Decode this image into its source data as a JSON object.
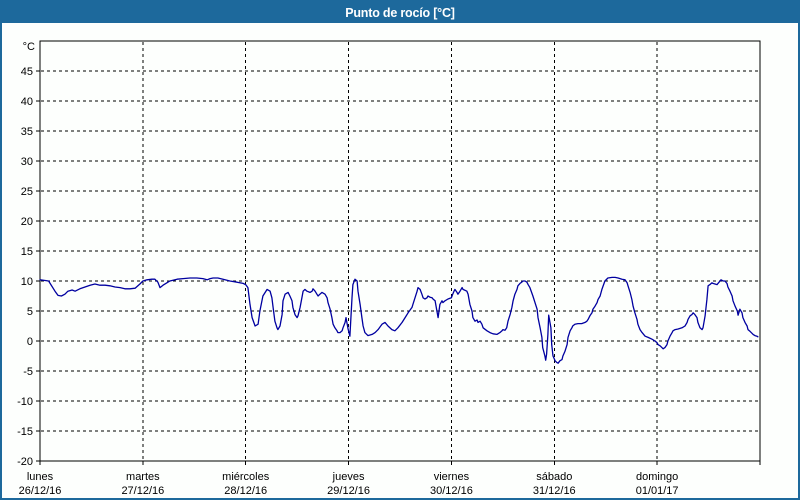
{
  "window": {
    "title": "Punto de rocío [°C]"
  },
  "colors": {
    "titlebar_bg": "#1d699c",
    "window_border": "#1d699c",
    "plot_background": "#fdfffd",
    "frame": "#000000",
    "grid": "#000000",
    "text": "#000000",
    "line": "#0000a0"
  },
  "chart_data": {
    "type": "line",
    "title": "Punto de rocío [°C]",
    "y_unit_label": "°C",
    "ylim": [
      -20,
      50
    ],
    "y_tick_step": 5,
    "y_ticks": [
      45,
      40,
      35,
      30,
      25,
      20,
      15,
      10,
      5,
      0,
      -5,
      -10,
      -15,
      -20
    ],
    "grid": "dashed",
    "legend_position": "none",
    "x_hours_total": 168,
    "x_days": [
      {
        "name": "lunes",
        "date": "26/12/16"
      },
      {
        "name": "martes",
        "date": "27/12/16"
      },
      {
        "name": "miércoles",
        "date": "28/12/16"
      },
      {
        "name": "jueves",
        "date": "29/12/16"
      },
      {
        "name": "viernes",
        "date": "30/12/16"
      },
      {
        "name": "sábado",
        "date": "31/12/16"
      },
      {
        "name": "domingo",
        "date": "01/01/17"
      }
    ],
    "series": [
      {
        "name": "Punto de rocío",
        "color": "#0000a0",
        "points": [
          [
            0,
            10.2
          ],
          [
            1,
            10.1
          ],
          [
            2,
            10.0
          ],
          [
            3.5,
            8.3
          ],
          [
            4.2,
            7.6
          ],
          [
            5,
            7.5
          ],
          [
            5.8,
            7.8
          ],
          [
            6.5,
            8.3
          ],
          [
            7.5,
            8.5
          ],
          [
            8.2,
            8.3
          ],
          [
            9.3,
            8.7
          ],
          [
            10.5,
            9.0
          ],
          [
            11.7,
            9.3
          ],
          [
            12.8,
            9.5
          ],
          [
            14,
            9.3
          ],
          [
            15.2,
            9.3
          ],
          [
            16.3,
            9.2
          ],
          [
            17.5,
            9.0
          ],
          [
            18.7,
            8.9
          ],
          [
            19.8,
            8.7
          ],
          [
            21,
            8.7
          ],
          [
            22.2,
            8.8
          ],
          [
            23.3,
            9.5
          ],
          [
            24,
            10.0
          ],
          [
            25,
            10.2
          ],
          [
            26.1,
            10.3
          ],
          [
            26.8,
            10.3
          ],
          [
            27.5,
            9.8
          ],
          [
            28,
            8.9
          ],
          [
            28.7,
            9.3
          ],
          [
            29.6,
            9.7
          ],
          [
            30.3,
            10.0
          ],
          [
            32,
            10.3
          ],
          [
            33.4,
            10.4
          ],
          [
            35,
            10.5
          ],
          [
            36.6,
            10.5
          ],
          [
            38,
            10.4
          ],
          [
            39,
            10.2
          ],
          [
            39.7,
            10.4
          ],
          [
            40.4,
            10.5
          ],
          [
            41.5,
            10.5
          ],
          [
            42.7,
            10.3
          ],
          [
            44.3,
            10.0
          ],
          [
            46,
            9.8
          ],
          [
            47.4,
            9.6
          ],
          [
            48,
            9.4
          ],
          [
            48.5,
            8.9
          ],
          [
            49,
            6.1
          ],
          [
            49.5,
            3.9
          ],
          [
            50.2,
            2.5
          ],
          [
            50.9,
            2.8
          ],
          [
            51.3,
            5.0
          ],
          [
            52,
            7.5
          ],
          [
            53,
            8.6
          ],
          [
            53.7,
            8.3
          ],
          [
            54.1,
            7.2
          ],
          [
            54.4,
            5.6
          ],
          [
            54.8,
            3.3
          ],
          [
            55.3,
            2.2
          ],
          [
            55.5,
            1.9
          ],
          [
            56,
            2.5
          ],
          [
            56.5,
            4.4
          ],
          [
            56.7,
            6.7
          ],
          [
            57.2,
            7.8
          ],
          [
            57.9,
            8.1
          ],
          [
            58.3,
            7.5
          ],
          [
            58.8,
            6.7
          ],
          [
            59,
            5.6
          ],
          [
            59.5,
            4.4
          ],
          [
            60,
            3.9
          ],
          [
            60.2,
            4.2
          ],
          [
            60.7,
            5.6
          ],
          [
            61.1,
            7.2
          ],
          [
            61.4,
            8.3
          ],
          [
            61.8,
            8.6
          ],
          [
            62.3,
            8.3
          ],
          [
            63,
            8.1
          ],
          [
            63.5,
            8.3
          ],
          [
            63.7,
            8.7
          ],
          [
            64.2,
            8.3
          ],
          [
            64.6,
            7.8
          ],
          [
            64.9,
            7.5
          ],
          [
            65.3,
            7.8
          ],
          [
            65.8,
            8.1
          ],
          [
            66.5,
            7.8
          ],
          [
            67,
            7.2
          ],
          [
            67.2,
            6.4
          ],
          [
            67.7,
            5.3
          ],
          [
            68.1,
            3.9
          ],
          [
            68.4,
            2.8
          ],
          [
            68.8,
            2.2
          ],
          [
            69.3,
            1.7
          ],
          [
            69.5,
            1.4
          ],
          [
            70,
            1.4
          ],
          [
            70.5,
            1.7
          ],
          [
            70.7,
            2.2
          ],
          [
            71.2,
            3.1
          ],
          [
            71.4,
            3.9
          ],
          [
            71.9,
            2.0
          ],
          [
            72.3,
            0.8
          ],
          [
            72.8,
            7.2
          ],
          [
            73,
            9.4
          ],
          [
            73.5,
            10.3
          ],
          [
            74,
            10.0
          ],
          [
            74.2,
            8.3
          ],
          [
            74.7,
            6.1
          ],
          [
            75.1,
            3.9
          ],
          [
            75.4,
            2.5
          ],
          [
            75.8,
            1.4
          ],
          [
            76.5,
            0.9
          ],
          [
            77.5,
            1.1
          ],
          [
            78.2,
            1.4
          ],
          [
            78.9,
            1.9
          ],
          [
            79.8,
            2.8
          ],
          [
            80.5,
            3.1
          ],
          [
            81.2,
            2.5
          ],
          [
            82.1,
            1.9
          ],
          [
            82.8,
            1.7
          ],
          [
            83.5,
            2.2
          ],
          [
            84.5,
            3.1
          ],
          [
            85.2,
            3.9
          ],
          [
            85.9,
            4.7
          ],
          [
            86.8,
            5.6
          ],
          [
            87,
            6.1
          ],
          [
            87.5,
            7.2
          ],
          [
            88,
            8.3
          ],
          [
            88.2,
            8.9
          ],
          [
            88.7,
            8.6
          ],
          [
            89.1,
            7.8
          ],
          [
            89.4,
            7.2
          ],
          [
            89.8,
            7.0
          ],
          [
            90.3,
            7.2
          ],
          [
            90.5,
            7.5
          ],
          [
            91,
            7.3
          ],
          [
            91.5,
            7.2
          ],
          [
            91.7,
            7.0
          ],
          [
            92.2,
            6.7
          ],
          [
            92.6,
            5.0
          ],
          [
            92.9,
            3.9
          ],
          [
            93.1,
            5.0
          ],
          [
            93.3,
            6.1
          ],
          [
            93.8,
            6.7
          ],
          [
            94,
            6.4
          ],
          [
            94.5,
            6.7
          ],
          [
            95.2,
            7.0
          ],
          [
            96,
            7.2
          ],
          [
            96.3,
            7.8
          ],
          [
            96.6,
            8.3
          ],
          [
            96.8,
            8.6
          ],
          [
            97.3,
            8.1
          ],
          [
            97.5,
            7.8
          ],
          [
            98,
            8.3
          ],
          [
            98.5,
            8.9
          ],
          [
            98.7,
            8.6
          ],
          [
            99.6,
            8.3
          ],
          [
            99.9,
            7.8
          ],
          [
            100.3,
            6.1
          ],
          [
            100.8,
            5.0
          ],
          [
            101,
            3.9
          ],
          [
            101.5,
            3.3
          ],
          [
            102,
            3.5
          ],
          [
            102.2,
            3.1
          ],
          [
            102.7,
            3.3
          ],
          [
            103.1,
            2.8
          ],
          [
            103.4,
            2.2
          ],
          [
            104.3,
            1.7
          ],
          [
            105,
            1.4
          ],
          [
            105.7,
            1.2
          ],
          [
            106.6,
            1.1
          ],
          [
            107.3,
            1.4
          ],
          [
            107.8,
            1.7
          ],
          [
            108,
            1.9
          ],
          [
            108.5,
            1.8
          ],
          [
            108.9,
            2.2
          ],
          [
            109.2,
            3.3
          ],
          [
            109.7,
            4.4
          ],
          [
            110.1,
            5.6
          ],
          [
            110.4,
            6.7
          ],
          [
            110.8,
            7.8
          ],
          [
            111.3,
            8.6
          ],
          [
            111.5,
            9.2
          ],
          [
            112,
            9.6
          ],
          [
            112.4,
            9.8
          ],
          [
            112.7,
            10.0
          ],
          [
            113.2,
            10.0
          ],
          [
            113.6,
            9.8
          ],
          [
            113.9,
            9.4
          ],
          [
            114.3,
            8.9
          ],
          [
            115,
            7.5
          ],
          [
            116,
            5.3
          ],
          [
            116.2,
            3.9
          ],
          [
            116.7,
            2.2
          ],
          [
            117.1,
            0.6
          ],
          [
            117.3,
            -1.1
          ],
          [
            117.8,
            -2.5
          ],
          [
            118,
            -3.2
          ],
          [
            118.2,
            -2.2
          ],
          [
            118.5,
            1.1
          ],
          [
            118.7,
            4.3
          ],
          [
            119.2,
            2.2
          ],
          [
            119.4,
            -0.6
          ],
          [
            119.7,
            -2.5
          ],
          [
            120.2,
            -3.3
          ],
          [
            120.6,
            -3.6
          ],
          [
            120.9,
            -3.7
          ],
          [
            121.3,
            -3.3
          ],
          [
            121.8,
            -3.1
          ],
          [
            122,
            -2.5
          ],
          [
            122.5,
            -1.7
          ],
          [
            123,
            -0.6
          ],
          [
            123.2,
            0.6
          ],
          [
            123.7,
            1.7
          ],
          [
            124.1,
            2.2
          ],
          [
            124.3,
            2.5
          ],
          [
            124.8,
            2.8
          ],
          [
            125.5,
            2.9
          ],
          [
            126.4,
            2.9
          ],
          [
            127.2,
            3.1
          ],
          [
            127.6,
            3.3
          ],
          [
            127.9,
            3.6
          ],
          [
            128.3,
            4.2
          ],
          [
            128.8,
            4.7
          ],
          [
            129,
            5.3
          ],
          [
            129.5,
            5.8
          ],
          [
            130,
            6.4
          ],
          [
            130.2,
            6.9
          ],
          [
            130.7,
            7.5
          ],
          [
            131.1,
            8.6
          ],
          [
            131.8,
            10.0
          ],
          [
            132.5,
            10.5
          ],
          [
            133.5,
            10.6
          ],
          [
            134.2,
            10.6
          ],
          [
            134.9,
            10.5
          ],
          [
            135.8,
            10.3
          ],
          [
            136.5,
            10.2
          ],
          [
            137,
            9.7
          ],
          [
            137.2,
            9.2
          ],
          [
            137.7,
            8.1
          ],
          [
            138.1,
            6.9
          ],
          [
            138.4,
            5.8
          ],
          [
            138.8,
            4.7
          ],
          [
            139.3,
            3.6
          ],
          [
            139.5,
            2.8
          ],
          [
            140,
            1.9
          ],
          [
            140.5,
            1.4
          ],
          [
            141.2,
            0.8
          ],
          [
            141.9,
            0.6
          ],
          [
            142.8,
            0.3
          ],
          [
            143.5,
            0.0
          ],
          [
            144,
            -0.3
          ],
          [
            144.2,
            -0.6
          ],
          [
            144.7,
            -0.8
          ],
          [
            145.1,
            -1.1
          ],
          [
            145.4,
            -1.3
          ],
          [
            145.8,
            -1.1
          ],
          [
            146.3,
            -0.6
          ],
          [
            146.5,
            0.0
          ],
          [
            147,
            0.8
          ],
          [
            147.5,
            1.4
          ],
          [
            147.7,
            1.7
          ],
          [
            148.2,
            1.9
          ],
          [
            148.9,
            2.0
          ],
          [
            149.8,
            2.2
          ],
          [
            150.5,
            2.5
          ],
          [
            151,
            3.1
          ],
          [
            151.2,
            3.6
          ],
          [
            151.7,
            4.2
          ],
          [
            152.1,
            4.4
          ],
          [
            152.4,
            4.7
          ],
          [
            152.8,
            4.4
          ],
          [
            153.3,
            3.9
          ],
          [
            153.5,
            3.1
          ],
          [
            154,
            2.2
          ],
          [
            154.5,
            1.9
          ],
          [
            154.7,
            2.2
          ],
          [
            155.2,
            4.2
          ],
          [
            155.6,
            6.9
          ],
          [
            155.9,
            9.2
          ],
          [
            156.3,
            9.4
          ],
          [
            156.8,
            9.7
          ],
          [
            157,
            9.6
          ],
          [
            157.5,
            9.5
          ],
          [
            158,
            9.4
          ],
          [
            158.2,
            9.6
          ],
          [
            158.9,
            10.2
          ],
          [
            159.4,
            10.0
          ],
          [
            159.8,
            10.0
          ],
          [
            160.3,
            9.6
          ],
          [
            160.5,
            9.0
          ],
          [
            161,
            8.3
          ],
          [
            161.5,
            7.5
          ],
          [
            161.7,
            6.7
          ],
          [
            162.2,
            5.8
          ],
          [
            162.7,
            5.0
          ],
          [
            162.9,
            4.3
          ],
          [
            163.3,
            5.3
          ],
          [
            163.8,
            4.7
          ],
          [
            164,
            3.9
          ],
          [
            164.5,
            3.1
          ],
          [
            165,
            2.5
          ],
          [
            165.2,
            1.9
          ],
          [
            165.7,
            1.6
          ],
          [
            166.1,
            1.3
          ],
          [
            166.4,
            1.1
          ],
          [
            166.8,
            0.9
          ],
          [
            167.3,
            0.8
          ],
          [
            167.5,
            0.7
          ]
        ]
      }
    ]
  }
}
